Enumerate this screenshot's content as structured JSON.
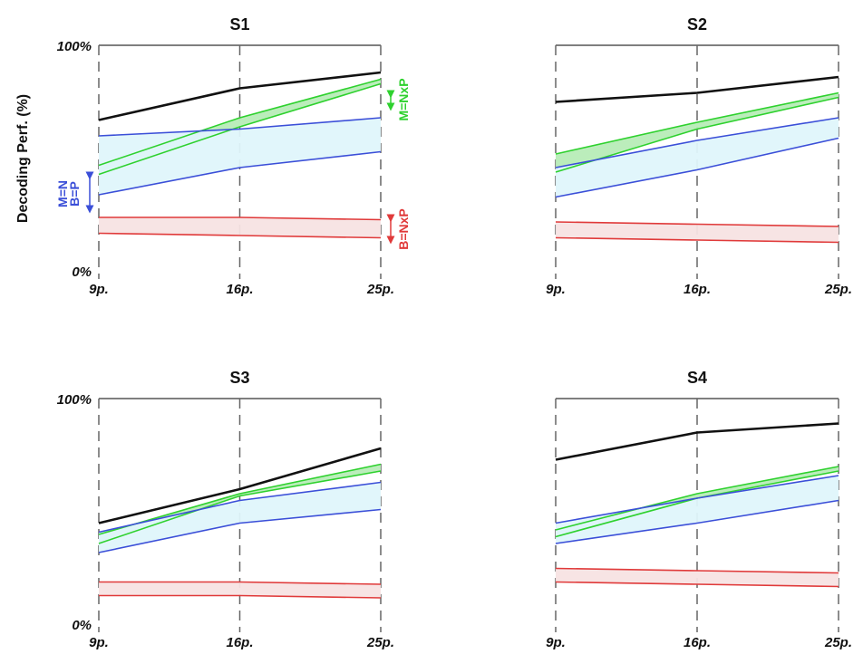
{
  "colors": {
    "black": "#111111",
    "blue": "#3b4fd8",
    "blue_fill": "#dff6fb",
    "green": "#2ed12e",
    "green_fill": "#b7ecb7",
    "red": "#e03a3a",
    "red_fill": "#f7e3e3",
    "axis": "#555555"
  },
  "ylabel": "Decoding Perf. (%)",
  "annotations": {
    "m_nxp": "M=NxP",
    "b_nxp": "B=NxP",
    "m_n": "M=N",
    "b_p": "B=P"
  },
  "chart_data": [
    {
      "type": "line",
      "title": "S1",
      "categories": [
        "9p.",
        "16p.",
        "25p."
      ],
      "ylim": [
        0,
        100
      ],
      "yticks": [
        "0%",
        "100%"
      ],
      "grid": "dashed vertical at each category",
      "series": [
        {
          "color_key": "black",
          "values": [
            67,
            81,
            88
          ]
        },
        {
          "color_key": "green",
          "values": [
            47,
            68,
            85
          ]
        },
        {
          "color_key": "green",
          "values": [
            43,
            64,
            83
          ]
        },
        {
          "color_key": "blue",
          "values": [
            60,
            63,
            68
          ]
        },
        {
          "color_key": "blue",
          "values": [
            34,
            46,
            53
          ]
        },
        {
          "color_key": "red",
          "values": [
            24,
            24,
            23
          ]
        },
        {
          "color_key": "red",
          "values": [
            17,
            16,
            15
          ]
        }
      ],
      "bands": [
        {
          "fill_key": "green_fill",
          "between": [
            1,
            2
          ]
        },
        {
          "fill_key": "blue_fill",
          "between": [
            3,
            4
          ]
        },
        {
          "fill_key": "red_fill",
          "between": [
            5,
            6
          ]
        }
      ]
    },
    {
      "type": "line",
      "title": "S2",
      "categories": [
        "9p.",
        "16p.",
        "25p."
      ],
      "ylim": [
        0,
        100
      ],
      "grid": "dashed vertical at each category",
      "series": [
        {
          "color_key": "black",
          "values": [
            75,
            79,
            86
          ]
        },
        {
          "color_key": "green",
          "values": [
            52,
            66,
            79
          ]
        },
        {
          "color_key": "green",
          "values": [
            44,
            63,
            77
          ]
        },
        {
          "color_key": "blue",
          "values": [
            46,
            58,
            68
          ]
        },
        {
          "color_key": "blue",
          "values": [
            33,
            45,
            59
          ]
        },
        {
          "color_key": "red",
          "values": [
            22,
            21,
            20
          ]
        },
        {
          "color_key": "red",
          "values": [
            15,
            14,
            13
          ]
        }
      ],
      "bands": [
        {
          "fill_key": "green_fill",
          "between": [
            1,
            2
          ]
        },
        {
          "fill_key": "blue_fill",
          "between": [
            3,
            4
          ]
        },
        {
          "fill_key": "red_fill",
          "between": [
            5,
            6
          ]
        }
      ]
    },
    {
      "type": "line",
      "title": "S3",
      "categories": [
        "9p.",
        "16p.",
        "25p."
      ],
      "ylim": [
        0,
        100
      ],
      "yticks": [
        "0%",
        "100%"
      ],
      "grid": "dashed vertical at each category",
      "series": [
        {
          "color_key": "black",
          "values": [
            45,
            60,
            78
          ]
        },
        {
          "color_key": "green",
          "values": [
            40,
            58,
            71
          ]
        },
        {
          "color_key": "green",
          "values": [
            36,
            57,
            68
          ]
        },
        {
          "color_key": "blue",
          "values": [
            41,
            55,
            63
          ]
        },
        {
          "color_key": "blue",
          "values": [
            32,
            45,
            51
          ]
        },
        {
          "color_key": "red",
          "values": [
            19,
            19,
            18
          ]
        },
        {
          "color_key": "red",
          "values": [
            13,
            13,
            12
          ]
        }
      ],
      "bands": [
        {
          "fill_key": "green_fill",
          "between": [
            1,
            2
          ]
        },
        {
          "fill_key": "blue_fill",
          "between": [
            3,
            4
          ]
        },
        {
          "fill_key": "red_fill",
          "between": [
            5,
            6
          ]
        }
      ]
    },
    {
      "type": "line",
      "title": "S4",
      "categories": [
        "9p.",
        "16p.",
        "25p."
      ],
      "ylim": [
        0,
        100
      ],
      "grid": "dashed vertical at each category",
      "series": [
        {
          "color_key": "black",
          "values": [
            73,
            85,
            89
          ]
        },
        {
          "color_key": "green",
          "values": [
            42,
            58,
            70
          ]
        },
        {
          "color_key": "green",
          "values": [
            39,
            56,
            68
          ]
        },
        {
          "color_key": "blue",
          "values": [
            45,
            56,
            66
          ]
        },
        {
          "color_key": "blue",
          "values": [
            36,
            45,
            55
          ]
        },
        {
          "color_key": "red",
          "values": [
            25,
            24,
            23
          ]
        },
        {
          "color_key": "red",
          "values": [
            19,
            18,
            17
          ]
        }
      ],
      "bands": [
        {
          "fill_key": "green_fill",
          "between": [
            1,
            2
          ]
        },
        {
          "fill_key": "blue_fill",
          "between": [
            3,
            4
          ]
        },
        {
          "fill_key": "red_fill",
          "between": [
            5,
            6
          ]
        }
      ]
    }
  ]
}
